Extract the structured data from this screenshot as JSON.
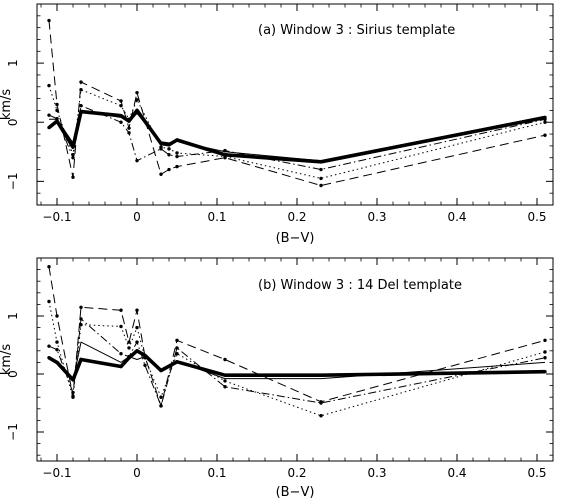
{
  "chart_data": [
    {
      "type": "line",
      "title": "(a) Window 3 : Sirius template",
      "xlabel": "(B−V)",
      "ylabel": "km/s",
      "xlim": [
        -0.125,
        0.52
      ],
      "ylim": [
        -1.4,
        2.0
      ],
      "xticks": [
        -0.1,
        0,
        0.1,
        0.2,
        0.3,
        0.4,
        0.5
      ],
      "xtick_labels": [
        "−0.1",
        "0",
        "0.1",
        "0.2",
        "0.3",
        "0.4",
        "0.5"
      ],
      "yticks": [
        -1,
        0,
        1
      ],
      "ytick_labels": [
        "−1",
        "0",
        "1"
      ],
      "grid": false,
      "x": [
        -0.11,
        -0.1,
        -0.08,
        -0.07,
        -0.02,
        -0.01,
        0.0,
        0.03,
        0.04,
        0.05,
        0.11,
        0.23,
        0.51
      ],
      "series": [
        {
          "style": "thick",
          "values": [
            -0.09,
            0.02,
            -0.42,
            0.18,
            0.11,
            0.02,
            0.2,
            -0.36,
            -0.38,
            -0.3,
            -0.55,
            -0.67,
            0.08
          ],
          "points": [
            -0.09,
            0.02,
            -0.42,
            0.18,
            0.11,
            0.02,
            0.2,
            -0.36,
            -0.38,
            -0.3,
            -0.55,
            -0.67,
            0.08
          ]
        },
        {
          "style": "dashed",
          "values": [
            1.72,
            0.3,
            -0.93,
            0.68,
            0.36,
            -0.1,
            0.5,
            -0.88,
            -0.8,
            -0.75,
            -0.6,
            -1.07,
            -0.22
          ],
          "points": [
            1.72,
            0.3,
            -0.93,
            0.68,
            0.36,
            -0.1,
            0.5,
            -0.88,
            -0.8,
            -0.75,
            -0.6,
            -1.07,
            -0.22
          ]
        },
        {
          "style": "dotted",
          "values": [
            0.62,
            0.2,
            -0.55,
            0.55,
            0.28,
            0.05,
            0.38,
            -0.42,
            -0.45,
            -0.52,
            -0.58,
            -0.95,
            0.0
          ],
          "points": [
            0.62,
            0.2,
            -0.55,
            0.55,
            0.28,
            0.05,
            0.38,
            -0.42,
            -0.45,
            -0.52,
            -0.58,
            -0.95,
            0.0
          ]
        },
        {
          "style": "dashdot",
          "values": [
            0.12,
            0.06,
            -0.6,
            0.28,
            0.0,
            -0.18,
            -0.65,
            -0.45,
            -0.55,
            -0.58,
            -0.48,
            -0.8,
            0.05
          ],
          "points": [
            0.12,
            0.06,
            -0.6,
            0.28,
            0.0,
            -0.18,
            -0.65,
            -0.45,
            -0.55,
            -0.58,
            -0.48,
            -0.8,
            0.05
          ]
        },
        {
          "style": "thin",
          "values": [
            0.05,
            0.05,
            -0.35,
            0.2,
            0.08,
            0.0,
            0.15,
            -0.33,
            -0.35,
            -0.32,
            -0.5,
            -0.65,
            0.1
          ],
          "points": [
            null,
            null,
            null,
            null,
            null,
            null,
            null,
            null,
            null,
            null,
            null,
            null,
            null
          ]
        }
      ]
    },
    {
      "type": "line",
      "title": "(b) Window 3 : 14 Del template",
      "xlabel": "(B−V)",
      "ylabel": "km/s",
      "xlim": [
        -0.125,
        0.52
      ],
      "ylim": [
        -1.5,
        2.0
      ],
      "xticks": [
        -0.1,
        0,
        0.1,
        0.2,
        0.3,
        0.4,
        0.5
      ],
      "xtick_labels": [
        "−0.1",
        "0",
        "0.1",
        "0.2",
        "0.3",
        "0.4",
        "0.5"
      ],
      "yticks": [
        -1,
        0,
        1
      ],
      "ytick_labels": [
        "−1",
        "0",
        "1"
      ],
      "grid": false,
      "x": [
        -0.11,
        -0.1,
        -0.08,
        -0.07,
        -0.02,
        -0.01,
        0.0,
        0.01,
        0.03,
        0.05,
        0.11,
        0.23,
        0.51
      ],
      "series": [
        {
          "style": "thick",
          "values": [
            0.28,
            0.2,
            -0.1,
            0.25,
            0.13,
            0.28,
            0.4,
            0.32,
            0.06,
            0.21,
            -0.02,
            -0.02,
            0.04
          ],
          "points": [
            0.28,
            0.2,
            -0.1,
            0.25,
            0.13,
            0.28,
            0.4,
            0.32,
            0.06,
            0.21,
            -0.02,
            -0.02,
            0.04
          ]
        },
        {
          "style": "dashed",
          "values": [
            1.85,
            1.0,
            -0.38,
            1.15,
            1.1,
            0.55,
            1.1,
            0.3,
            -0.55,
            0.58,
            0.25,
            -0.48,
            0.58
          ],
          "points": [
            1.85,
            1.0,
            -0.38,
            1.15,
            1.1,
            0.55,
            1.1,
            0.3,
            -0.55,
            0.58,
            0.25,
            -0.48,
            0.58
          ]
        },
        {
          "style": "dotted",
          "values": [
            1.25,
            0.55,
            -0.4,
            0.85,
            0.82,
            0.45,
            0.8,
            0.28,
            -0.4,
            0.35,
            -0.12,
            -0.72,
            0.38
          ],
          "points": [
            1.25,
            0.55,
            -0.4,
            0.85,
            0.82,
            0.45,
            0.8,
            0.28,
            -0.4,
            0.35,
            -0.12,
            -0.72,
            0.38
          ]
        },
        {
          "style": "dashdot",
          "values": [
            0.48,
            0.42,
            -0.32,
            0.95,
            0.35,
            0.3,
            0.55,
            0.15,
            -0.55,
            0.45,
            -0.22,
            -0.5,
            0.28
          ],
          "points": [
            0.48,
            0.42,
            -0.32,
            0.95,
            0.35,
            0.3,
            0.55,
            0.15,
            -0.55,
            0.45,
            -0.22,
            -0.5,
            0.28
          ]
        },
        {
          "style": "thin",
          "values": [
            0.3,
            0.2,
            -0.12,
            0.55,
            0.2,
            0.3,
            0.25,
            0.3,
            0.05,
            0.22,
            -0.08,
            -0.08,
            0.2
          ],
          "points": [
            null,
            null,
            null,
            null,
            null,
            null,
            null,
            null,
            null,
            null,
            null,
            null,
            null
          ]
        }
      ]
    }
  ]
}
